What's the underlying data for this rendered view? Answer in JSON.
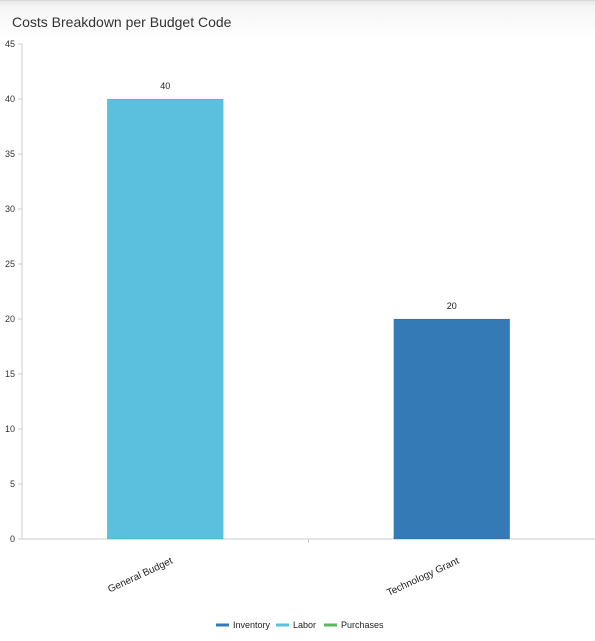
{
  "panel": {
    "title": "Costs Breakdown per Budget Code"
  },
  "chart_data": {
    "type": "bar",
    "title": "Costs Breakdown per Budget Code",
    "categories": [
      "General Budget",
      "Technology Grant"
    ],
    "series": [
      {
        "name": "Inventory",
        "color": "#337ab7",
        "values": [
          null,
          20
        ]
      },
      {
        "name": "Labor",
        "color": "#5bc0de",
        "values": [
          40,
          null
        ]
      },
      {
        "name": "Purchases",
        "color": "#5cb85c",
        "values": [
          null,
          null
        ]
      }
    ],
    "bar_values": [
      40,
      20
    ],
    "bar_colors": [
      "#5bc0de",
      "#337ab7"
    ],
    "ylim": [
      0,
      45
    ],
    "yticks": [
      0,
      5,
      10,
      15,
      20,
      25,
      30,
      35,
      40,
      45
    ],
    "xlabel": "",
    "ylabel": "",
    "grid": false,
    "legend": "bottom-center",
    "category_label_rotation": "rotated"
  }
}
